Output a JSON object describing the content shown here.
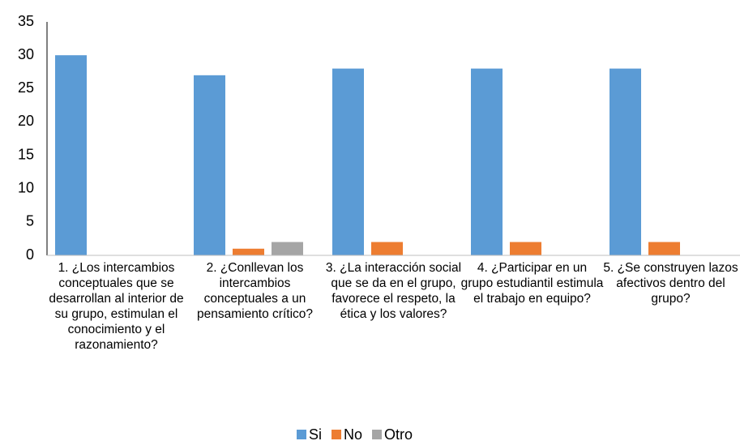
{
  "chart_data": {
    "type": "bar",
    "categories": [
      "1. ¿Los intercambios conceptuales que se desarrollan al interior de su grupo, estimulan el conocimiento y el razonamiento?",
      "2. ¿Conllevan los intercambios conceptuales a un pensamiento crítico?",
      "3. ¿La interacción social que se da en el grupo, favorece el respeto, la ética y los valores?",
      "4. ¿Participar en un grupo estudiantil estimula el trabajo en equipo?",
      "5. ¿Se construyen lazos afectivos dentro del grupo?"
    ],
    "series": [
      {
        "name": "Si",
        "color": "#5b9bd5",
        "values": [
          30,
          27,
          28,
          28,
          28
        ]
      },
      {
        "name": "No",
        "color": "#ed7d31",
        "values": [
          0,
          1,
          2,
          2,
          2
        ]
      },
      {
        "name": "Otro",
        "color": "#a5a5a5",
        "values": [
          0,
          2,
          0,
          0,
          0
        ]
      }
    ],
    "ylim": [
      0,
      35
    ],
    "yticks": [
      0,
      5,
      10,
      15,
      20,
      25,
      30,
      35
    ],
    "grid": false,
    "legend": "bottom"
  }
}
